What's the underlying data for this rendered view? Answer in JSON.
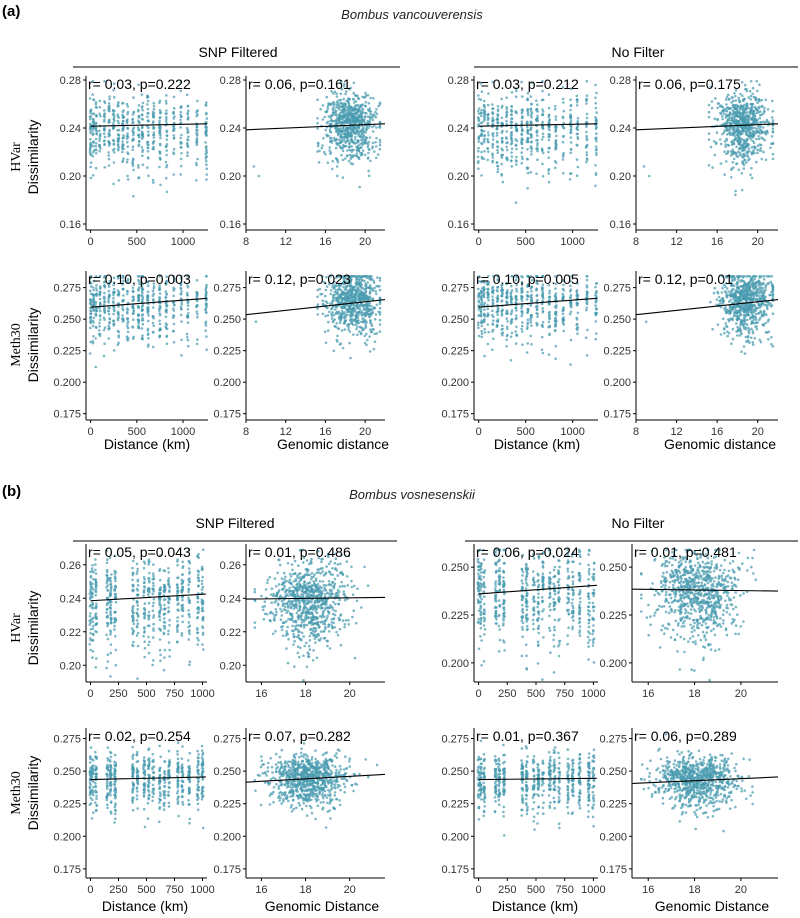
{
  "point_color": "#4a9bb0",
  "figure": {
    "panels": [
      {
        "label": "(a)",
        "species": "Bombus vancouverensis",
        "groups": [
          "SNP Filtered",
          "No Filter"
        ],
        "rows": [
          {
            "ylabel_line1": "HVar",
            "ylabel_line2": "Dissimilarity"
          },
          {
            "ylabel_line1": "Meth30",
            "ylabel_line2": "Dissimilarity"
          }
        ],
        "xlabels": [
          "Distance (km)",
          "Genomic distance",
          "Distance (km)",
          "Genomic distance"
        ]
      },
      {
        "label": "(b)",
        "species": "Bombus vosnesenskii",
        "groups": [
          "SNP Filtered",
          "No Filter"
        ],
        "rows": [
          {
            "ylabel_line1": "HVar",
            "ylabel_line2": "Dissimilarity"
          },
          {
            "ylabel_line1": "Meth30",
            "ylabel_line2": "Dissimilarity"
          }
        ],
        "xlabels": [
          "Distance (km)",
          "Genomic Distance",
          "Distance (km)",
          "Genomic Distance"
        ]
      }
    ]
  },
  "chart_data": [
    {
      "type": "scatter",
      "panel": "(a)",
      "group": "SNP Filtered",
      "metric": "HVar",
      "xvar": "Distance (km)",
      "annotation": "r= 0.03, p=0.222",
      "xlim": [
        -50,
        1270
      ],
      "ylim": [
        0.155,
        0.28
      ],
      "xticks": [
        0,
        500,
        1000
      ],
      "yticks": [
        0.16,
        0.2,
        0.24,
        0.28
      ],
      "ytick_labels": [
        "0.16",
        "0.20",
        "0.24",
        "0.28"
      ],
      "trend": {
        "x": [
          0,
          1260
        ],
        "y": [
          0.2415,
          0.2435
        ]
      },
      "scatter": {
        "mode": "dist",
        "clusters": [
          0,
          30,
          60,
          100,
          150,
          200,
          250,
          300,
          350,
          400,
          460,
          520,
          560,
          620,
          680,
          750,
          820,
          900,
          980,
          1050,
          1150,
          1250
        ],
        "center": 0.24,
        "spread": 0.014,
        "n": 600,
        "seed": 11
      }
    },
    {
      "type": "scatter",
      "panel": "(a)",
      "group": "SNP Filtered",
      "metric": "HVar",
      "xvar": "Genomic distance",
      "annotation": "r= 0.06, p=0.161",
      "xlim": [
        8,
        22
      ],
      "ylim": [
        0.155,
        0.28
      ],
      "xticks": [
        8,
        12,
        16,
        20
      ],
      "yticks": [
        0.16,
        0.2,
        0.24,
        0.28
      ],
      "ytick_labels": [
        "0.16",
        "0.20",
        "0.24",
        "0.28"
      ],
      "trend": {
        "x": [
          8,
          22
        ],
        "y": [
          0.2385,
          0.2435
        ]
      },
      "scatter": {
        "mode": "gen",
        "xc": 18.6,
        "xs": 1.3,
        "xmin": 15.2,
        "xmax": 21.5,
        "center": 0.243,
        "spread": 0.013,
        "n": 700,
        "seed": 12,
        "outliers": [
          [
            8.8,
            0.208
          ],
          [
            9.3,
            0.2
          ]
        ]
      }
    },
    {
      "type": "scatter",
      "panel": "(a)",
      "group": "No Filter",
      "metric": "HVar",
      "xvar": "Distance (km)",
      "annotation": "r= 0.03, p=0.212",
      "xlim": [
        -50,
        1270
      ],
      "ylim": [
        0.155,
        0.28
      ],
      "xticks": [
        0,
        500,
        1000
      ],
      "yticks": [
        0.16,
        0.2,
        0.24,
        0.28
      ],
      "ytick_labels": [
        "0.16",
        "0.20",
        "0.24",
        "0.28"
      ],
      "trend": {
        "x": [
          0,
          1260
        ],
        "y": [
          0.2415,
          0.2435
        ]
      },
      "scatter": {
        "mode": "dist",
        "clusters": [
          0,
          30,
          60,
          100,
          150,
          200,
          250,
          300,
          350,
          400,
          460,
          520,
          560,
          620,
          680,
          750,
          820,
          900,
          980,
          1050,
          1150,
          1250
        ],
        "center": 0.24,
        "spread": 0.014,
        "n": 600,
        "seed": 13
      }
    },
    {
      "type": "scatter",
      "panel": "(a)",
      "group": "No Filter",
      "metric": "HVar",
      "xvar": "Genomic distance",
      "annotation": "r= 0.06, p=0.175",
      "xlim": [
        8,
        22
      ],
      "ylim": [
        0.155,
        0.28
      ],
      "xticks": [
        8,
        12,
        16,
        20
      ],
      "yticks": [
        0.16,
        0.2,
        0.24,
        0.28
      ],
      "ytick_labels": [
        "0.16",
        "0.20",
        "0.24",
        "0.28"
      ],
      "trend": {
        "x": [
          8,
          22
        ],
        "y": [
          0.2385,
          0.2435
        ]
      },
      "scatter": {
        "mode": "gen",
        "xc": 18.6,
        "xs": 1.3,
        "xmin": 15.2,
        "xmax": 21.5,
        "center": 0.243,
        "spread": 0.013,
        "n": 700,
        "seed": 14,
        "outliers": [
          [
            8.8,
            0.208
          ],
          [
            9.3,
            0.2
          ]
        ]
      }
    },
    {
      "type": "scatter",
      "panel": "(a)",
      "group": "SNP Filtered",
      "metric": "Meth30",
      "xvar": "Distance (km)",
      "annotation": "r= 0.10, p=0.003",
      "xlim": [
        -50,
        1270
      ],
      "ylim": [
        0.17,
        0.285
      ],
      "xticks": [
        0,
        500,
        1000
      ],
      "yticks": [
        0.175,
        0.2,
        0.225,
        0.25,
        0.275
      ],
      "ytick_labels": [
        "0.175",
        "0.200",
        "0.225",
        "0.250",
        "0.275"
      ],
      "trend": {
        "x": [
          0,
          1260
        ],
        "y": [
          0.2595,
          0.2665
        ]
      },
      "scatter": {
        "mode": "dist",
        "clusters": [
          0,
          30,
          60,
          100,
          150,
          200,
          250,
          300,
          350,
          400,
          460,
          520,
          560,
          620,
          680,
          750,
          820,
          900,
          980,
          1050,
          1150,
          1250
        ],
        "center": 0.262,
        "spread": 0.012,
        "n": 600,
        "seed": 21
      }
    },
    {
      "type": "scatter",
      "panel": "(a)",
      "group": "SNP Filtered",
      "metric": "Meth30",
      "xvar": "Genomic distance",
      "annotation": "r= 0.12, p=0.023",
      "xlim": [
        8,
        22
      ],
      "ylim": [
        0.17,
        0.285
      ],
      "xticks": [
        8,
        12,
        16,
        20
      ],
      "yticks": [
        0.175,
        0.2,
        0.225,
        0.25,
        0.275
      ],
      "ytick_labels": [
        "0.175",
        "0.200",
        "0.225",
        "0.250",
        "0.275"
      ],
      "trend": {
        "x": [
          8,
          22
        ],
        "y": [
          0.2535,
          0.2655
        ]
      },
      "scatter": {
        "mode": "gen",
        "xc": 18.8,
        "xs": 1.3,
        "xmin": 15.2,
        "xmax": 21.5,
        "center": 0.265,
        "spread": 0.011,
        "n": 700,
        "seed": 22,
        "outliers": [
          [
            9.0,
            0.248
          ]
        ]
      }
    },
    {
      "type": "scatter",
      "panel": "(a)",
      "group": "No Filter",
      "metric": "Meth30",
      "xvar": "Distance (km)",
      "annotation": "r= 0.10, p=0.005",
      "xlim": [
        -50,
        1270
      ],
      "ylim": [
        0.17,
        0.285
      ],
      "xticks": [
        0,
        500,
        1000
      ],
      "yticks": [
        0.175,
        0.2,
        0.225,
        0.25,
        0.275
      ],
      "ytick_labels": [
        "0.175",
        "0.200",
        "0.225",
        "0.250",
        "0.275"
      ],
      "trend": {
        "x": [
          0,
          1260
        ],
        "y": [
          0.2595,
          0.2665
        ]
      },
      "scatter": {
        "mode": "dist",
        "clusters": [
          0,
          30,
          60,
          100,
          150,
          200,
          250,
          300,
          350,
          400,
          460,
          520,
          560,
          620,
          680,
          750,
          820,
          900,
          980,
          1050,
          1150,
          1250
        ],
        "center": 0.262,
        "spread": 0.012,
        "n": 600,
        "seed": 23
      }
    },
    {
      "type": "scatter",
      "panel": "(a)",
      "group": "No Filter",
      "metric": "Meth30",
      "xvar": "Genomic distance",
      "annotation": "r= 0.12, p=0.01",
      "xlim": [
        8,
        22
      ],
      "ylim": [
        0.17,
        0.285
      ],
      "xticks": [
        8,
        12,
        16,
        20
      ],
      "yticks": [
        0.175,
        0.2,
        0.225,
        0.25,
        0.275
      ],
      "ytick_labels": [
        "0.175",
        "0.200",
        "0.225",
        "0.250",
        "0.275"
      ],
      "trend": {
        "x": [
          8,
          22
        ],
        "y": [
          0.2535,
          0.2655
        ]
      },
      "scatter": {
        "mode": "gen",
        "xc": 18.8,
        "xs": 1.3,
        "xmin": 15.2,
        "xmax": 21.5,
        "center": 0.265,
        "spread": 0.011,
        "n": 700,
        "seed": 24,
        "outliers": [
          [
            9.0,
            0.248
          ]
        ]
      }
    },
    {
      "type": "scatter",
      "panel": "(b)",
      "group": "SNP Filtered",
      "metric": "HVar",
      "xvar": "Distance (km)",
      "annotation": "r= 0.05, p=0.043",
      "xlim": [
        -40,
        1040
      ],
      "ylim": [
        0.19,
        0.27
      ],
      "xticks": [
        0,
        250,
        500,
        750,
        1000
      ],
      "yticks": [
        0.2,
        0.22,
        0.24,
        0.26
      ],
      "ytick_labels": [
        "0.20",
        "0.22",
        "0.24",
        "0.26"
      ],
      "trend": {
        "x": [
          0,
          1030
        ],
        "y": [
          0.2385,
          0.2425
        ]
      },
      "scatter": {
        "mode": "dist",
        "clusters": [
          0,
          20,
          50,
          150,
          180,
          220,
          380,
          420,
          480,
          520,
          560,
          620,
          660,
          700,
          780,
          820,
          880,
          960,
          1000
        ],
        "center": 0.239,
        "spread": 0.012,
        "n": 650,
        "seed": 31
      }
    },
    {
      "type": "scatter",
      "panel": "(b)",
      "group": "SNP Filtered",
      "metric": "HVar",
      "xvar": "Genomic Distance",
      "annotation": "r= 0.01, p=0.486",
      "xlim": [
        15.3,
        21.6
      ],
      "ylim": [
        0.19,
        0.27
      ],
      "xticks": [
        16,
        18,
        20
      ],
      "yticks": [
        0.2,
        0.22,
        0.24,
        0.26
      ],
      "ytick_labels": [
        "0.20",
        "0.22",
        "0.24",
        "0.26"
      ],
      "trend": {
        "x": [
          15.3,
          21.6
        ],
        "y": [
          0.2395,
          0.2405
        ]
      },
      "scatter": {
        "mode": "gen",
        "xc": 18.1,
        "xs": 0.9,
        "xmin": 15.7,
        "xmax": 21.3,
        "center": 0.239,
        "spread": 0.011,
        "n": 800,
        "seed": 32,
        "outliers": []
      }
    },
    {
      "type": "scatter",
      "panel": "(b)",
      "group": "No Filter",
      "metric": "HVar",
      "xvar": "Distance (km)",
      "annotation": "r= 0.06, p=0.024",
      "xlim": [
        -40,
        1040
      ],
      "ylim": [
        0.19,
        0.26
      ],
      "xticks": [
        0,
        250,
        500,
        750,
        1000
      ],
      "yticks": [
        0.2,
        0.225,
        0.25
      ],
      "ytick_labels": [
        "0.200",
        "0.225",
        "0.250"
      ],
      "trend": {
        "x": [
          0,
          1030
        ],
        "y": [
          0.236,
          0.2405
        ]
      },
      "scatter": {
        "mode": "dist",
        "clusters": [
          0,
          20,
          50,
          150,
          180,
          220,
          380,
          420,
          480,
          520,
          560,
          620,
          660,
          700,
          780,
          820,
          880,
          960,
          1000
        ],
        "center": 0.237,
        "spread": 0.011,
        "n": 650,
        "seed": 33
      }
    },
    {
      "type": "scatter",
      "panel": "(b)",
      "group": "No Filter",
      "metric": "HVar",
      "xvar": "Genomic Distance",
      "annotation": "r= 0.01, p=0.481",
      "xlim": [
        15.3,
        21.6
      ],
      "ylim": [
        0.19,
        0.26
      ],
      "xticks": [
        16,
        18,
        20
      ],
      "yticks": [
        0.2,
        0.225,
        0.25
      ],
      "ytick_labels": [
        "0.200",
        "0.225",
        "0.250"
      ],
      "trend": {
        "x": [
          15.3,
          21.6
        ],
        "y": [
          0.2385,
          0.2375
        ]
      },
      "scatter": {
        "mode": "gen",
        "xc": 18.1,
        "xs": 0.9,
        "xmin": 15.7,
        "xmax": 21.3,
        "center": 0.237,
        "spread": 0.01,
        "n": 800,
        "seed": 34,
        "outliers": []
      }
    },
    {
      "type": "scatter",
      "panel": "(b)",
      "group": "SNP Filtered",
      "metric": "Meth30",
      "xvar": "Distance (km)",
      "annotation": "r= 0.02, p=0.254",
      "xlim": [
        -40,
        1040
      ],
      "ylim": [
        0.168,
        0.28
      ],
      "xticks": [
        0,
        250,
        500,
        750,
        1000
      ],
      "yticks": [
        0.175,
        0.2,
        0.225,
        0.25,
        0.275
      ],
      "ytick_labels": [
        "0.175",
        "0.200",
        "0.225",
        "0.250",
        "0.275"
      ],
      "trend": {
        "x": [
          0,
          1030
        ],
        "y": [
          0.2435,
          0.2455
        ]
      },
      "scatter": {
        "mode": "dist",
        "clusters": [
          0,
          20,
          50,
          150,
          180,
          220,
          380,
          420,
          480,
          520,
          560,
          620,
          660,
          700,
          780,
          820,
          880,
          960,
          1000
        ],
        "center": 0.245,
        "spread": 0.01,
        "n": 650,
        "seed": 41
      }
    },
    {
      "type": "scatter",
      "panel": "(b)",
      "group": "SNP Filtered",
      "metric": "Meth30",
      "xvar": "Genomic Distance",
      "annotation": "r= 0.07, p=0.282",
      "xlim": [
        15.3,
        21.6
      ],
      "ylim": [
        0.168,
        0.28
      ],
      "xticks": [
        16,
        18,
        20
      ],
      "yticks": [
        0.175,
        0.2,
        0.225,
        0.25,
        0.275
      ],
      "ytick_labels": [
        "0.175",
        "0.200",
        "0.225",
        "0.250",
        "0.275"
      ],
      "trend": {
        "x": [
          15.3,
          21.6
        ],
        "y": [
          0.2415,
          0.2475
        ]
      },
      "scatter": {
        "mode": "gen",
        "xc": 18.1,
        "xs": 0.9,
        "xmin": 15.7,
        "xmax": 21.3,
        "center": 0.245,
        "spread": 0.009,
        "n": 800,
        "seed": 42,
        "outliers": []
      }
    },
    {
      "type": "scatter",
      "panel": "(b)",
      "group": "No Filter",
      "metric": "Meth30",
      "xvar": "Distance (km)",
      "annotation": "r= 0.01, p=0.367",
      "xlim": [
        -40,
        1040
      ],
      "ylim": [
        0.168,
        0.28
      ],
      "xticks": [
        0,
        250,
        500,
        750,
        1000
      ],
      "yticks": [
        0.175,
        0.2,
        0.225,
        0.25,
        0.275
      ],
      "ytick_labels": [
        "0.175",
        "0.200",
        "0.225",
        "0.250",
        "0.275"
      ],
      "trend": {
        "x": [
          0,
          1030
        ],
        "y": [
          0.2435,
          0.2445
        ]
      },
      "scatter": {
        "mode": "dist",
        "clusters": [
          0,
          20,
          50,
          150,
          180,
          220,
          380,
          420,
          480,
          520,
          560,
          620,
          660,
          700,
          780,
          820,
          880,
          960,
          1000
        ],
        "center": 0.244,
        "spread": 0.01,
        "n": 650,
        "seed": 43
      }
    },
    {
      "type": "scatter",
      "panel": "(b)",
      "group": "No Filter",
      "metric": "Meth30",
      "xvar": "Genomic Distance",
      "annotation": "r= 0.06, p=0.289",
      "xlim": [
        15.3,
        21.6
      ],
      "ylim": [
        0.168,
        0.28
      ],
      "xticks": [
        16,
        18,
        20
      ],
      "yticks": [
        0.175,
        0.2,
        0.225,
        0.25,
        0.275
      ],
      "ytick_labels": [
        "0.175",
        "0.200",
        "0.225",
        "0.250",
        "0.275"
      ],
      "trend": {
        "x": [
          15.3,
          21.6
        ],
        "y": [
          0.2405,
          0.2455
        ]
      },
      "scatter": {
        "mode": "gen",
        "xc": 18.1,
        "xs": 0.9,
        "xmin": 15.7,
        "xmax": 21.3,
        "center": 0.244,
        "spread": 0.009,
        "n": 800,
        "seed": 44,
        "outliers": []
      }
    }
  ]
}
